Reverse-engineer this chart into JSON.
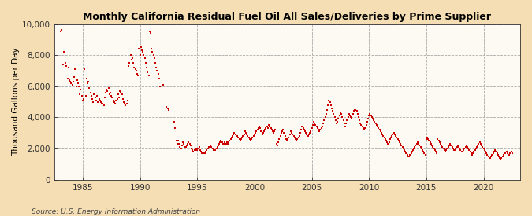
{
  "title": "Monthly California Residual Fuel Oil All Sales/Deliveries by Prime Supplier",
  "ylabel": "Thousand Gallons per Day",
  "source": "Source: U.S. Energy Information Administration",
  "bg_outer": "#F5DEB3",
  "bg_plot": "#FDFAF3",
  "marker_color": "#CC0000",
  "ylim": [
    0,
    10000
  ],
  "yticks": [
    0,
    2000,
    4000,
    6000,
    8000,
    10000
  ],
  "xlim_start": 1982.5,
  "xlim_end": 2023.2,
  "xticks": [
    1985,
    1990,
    1995,
    2000,
    2005,
    2010,
    2015,
    2020
  ],
  "data": [
    [
      1983.08,
      9500
    ],
    [
      1983.17,
      9600
    ],
    [
      1983.25,
      7400
    ],
    [
      1983.33,
      8200
    ],
    [
      1983.5,
      7500
    ],
    [
      1983.58,
      7300
    ],
    [
      1983.67,
      6500
    ],
    [
      1983.75,
      7200
    ],
    [
      1983.83,
      6400
    ],
    [
      1983.92,
      6300
    ],
    [
      1984.0,
      6200
    ],
    [
      1984.08,
      6100
    ],
    [
      1984.17,
      6300
    ],
    [
      1984.25,
      6600
    ],
    [
      1984.33,
      7100
    ],
    [
      1984.42,
      6000
    ],
    [
      1984.5,
      6400
    ],
    [
      1984.58,
      6200
    ],
    [
      1984.67,
      6000
    ],
    [
      1984.75,
      5500
    ],
    [
      1984.83,
      5800
    ],
    [
      1984.92,
      5400
    ],
    [
      1985.0,
      5100
    ],
    [
      1985.08,
      5200
    ],
    [
      1985.17,
      7100
    ],
    [
      1985.25,
      5400
    ],
    [
      1985.33,
      6500
    ],
    [
      1985.42,
      6200
    ],
    [
      1985.5,
      6300
    ],
    [
      1985.58,
      5900
    ],
    [
      1985.67,
      5600
    ],
    [
      1985.75,
      5400
    ],
    [
      1985.83,
      5200
    ],
    [
      1985.92,
      5000
    ],
    [
      1986.0,
      5500
    ],
    [
      1986.08,
      5300
    ],
    [
      1986.17,
      5100
    ],
    [
      1986.25,
      5400
    ],
    [
      1986.33,
      5000
    ],
    [
      1986.42,
      5200
    ],
    [
      1986.5,
      5100
    ],
    [
      1986.58,
      5000
    ],
    [
      1986.67,
      4900
    ],
    [
      1986.75,
      4900
    ],
    [
      1986.83,
      4800
    ],
    [
      1986.92,
      5300
    ],
    [
      1987.0,
      5600
    ],
    [
      1987.08,
      5800
    ],
    [
      1987.17,
      5700
    ],
    [
      1987.25,
      5900
    ],
    [
      1987.33,
      5500
    ],
    [
      1987.42,
      5600
    ],
    [
      1987.5,
      5400
    ],
    [
      1987.58,
      5300
    ],
    [
      1987.67,
      5100
    ],
    [
      1987.75,
      5000
    ],
    [
      1987.83,
      4900
    ],
    [
      1987.92,
      5100
    ],
    [
      1988.0,
      5200
    ],
    [
      1988.08,
      5500
    ],
    [
      1988.17,
      5300
    ],
    [
      1988.25,
      5700
    ],
    [
      1988.33,
      5600
    ],
    [
      1988.42,
      5500
    ],
    [
      1988.5,
      5200
    ],
    [
      1988.58,
      5000
    ],
    [
      1988.67,
      4900
    ],
    [
      1988.75,
      4800
    ],
    [
      1988.83,
      4900
    ],
    [
      1988.92,
      5100
    ],
    [
      1989.0,
      7300
    ],
    [
      1989.08,
      7500
    ],
    [
      1989.17,
      8000
    ],
    [
      1989.25,
      7700
    ],
    [
      1989.33,
      7800
    ],
    [
      1989.42,
      7500
    ],
    [
      1989.5,
      7200
    ],
    [
      1989.58,
      7100
    ],
    [
      1989.67,
      7000
    ],
    [
      1989.75,
      6800
    ],
    [
      1989.83,
      6700
    ],
    [
      1989.92,
      8400
    ],
    [
      1990.0,
      8000
    ],
    [
      1990.08,
      8500
    ],
    [
      1990.17,
      8300
    ],
    [
      1990.25,
      8200
    ],
    [
      1990.33,
      8000
    ],
    [
      1990.42,
      7800
    ],
    [
      1990.5,
      7500
    ],
    [
      1990.58,
      7200
    ],
    [
      1990.67,
      6900
    ],
    [
      1990.75,
      6700
    ],
    [
      1990.83,
      9500
    ],
    [
      1990.92,
      9400
    ],
    [
      1991.0,
      8400
    ],
    [
      1991.08,
      8200
    ],
    [
      1991.17,
      8000
    ],
    [
      1991.25,
      7800
    ],
    [
      1991.33,
      7500
    ],
    [
      1991.42,
      7200
    ],
    [
      1991.5,
      7000
    ],
    [
      1991.58,
      6800
    ],
    [
      1991.67,
      6500
    ],
    [
      1991.75,
      6000
    ],
    [
      1992.0,
      6100
    ],
    [
      1992.33,
      4700
    ],
    [
      1992.42,
      4600
    ],
    [
      1992.5,
      4500
    ],
    [
      1993.0,
      3700
    ],
    [
      1993.08,
      3300
    ],
    [
      1993.17,
      2500
    ],
    [
      1993.25,
      2300
    ],
    [
      1993.33,
      2500
    ],
    [
      1993.42,
      2300
    ],
    [
      1993.5,
      2100
    ],
    [
      1993.58,
      2000
    ],
    [
      1993.67,
      2200
    ],
    [
      1993.75,
      2400
    ],
    [
      1993.83,
      2300
    ],
    [
      1993.92,
      2100
    ],
    [
      1994.0,
      2100
    ],
    [
      1994.08,
      2200
    ],
    [
      1994.17,
      2300
    ],
    [
      1994.25,
      2400
    ],
    [
      1994.33,
      2300
    ],
    [
      1994.42,
      2200
    ],
    [
      1994.5,
      2000
    ],
    [
      1994.58,
      1900
    ],
    [
      1994.67,
      1800
    ],
    [
      1994.75,
      1900
    ],
    [
      1994.83,
      1900
    ],
    [
      1994.92,
      2000
    ],
    [
      1995.0,
      1900
    ],
    [
      1995.08,
      2000
    ],
    [
      1995.17,
      2100
    ],
    [
      1995.25,
      1900
    ],
    [
      1995.33,
      1800
    ],
    [
      1995.42,
      1700
    ],
    [
      1995.5,
      1700
    ],
    [
      1995.58,
      1700
    ],
    [
      1995.67,
      1700
    ],
    [
      1995.75,
      1800
    ],
    [
      1995.83,
      1900
    ],
    [
      1995.92,
      2000
    ],
    [
      1996.0,
      2100
    ],
    [
      1996.08,
      2100
    ],
    [
      1996.17,
      2200
    ],
    [
      1996.25,
      2100
    ],
    [
      1996.33,
      2000
    ],
    [
      1996.42,
      1900
    ],
    [
      1996.5,
      1900
    ],
    [
      1996.58,
      1900
    ],
    [
      1996.67,
      2000
    ],
    [
      1996.75,
      2100
    ],
    [
      1996.83,
      2200
    ],
    [
      1996.92,
      2300
    ],
    [
      1997.0,
      2400
    ],
    [
      1997.08,
      2500
    ],
    [
      1997.17,
      2400
    ],
    [
      1997.25,
      2300
    ],
    [
      1997.33,
      2300
    ],
    [
      1997.42,
      2400
    ],
    [
      1997.5,
      2300
    ],
    [
      1997.58,
      2400
    ],
    [
      1997.67,
      2300
    ],
    [
      1997.75,
      2400
    ],
    [
      1997.83,
      2500
    ],
    [
      1997.92,
      2600
    ],
    [
      1998.0,
      2700
    ],
    [
      1998.08,
      2800
    ],
    [
      1998.17,
      2900
    ],
    [
      1998.25,
      3000
    ],
    [
      1998.33,
      2900
    ],
    [
      1998.42,
      2800
    ],
    [
      1998.5,
      2800
    ],
    [
      1998.58,
      2700
    ],
    [
      1998.67,
      2600
    ],
    [
      1998.75,
      2500
    ],
    [
      1998.83,
      2600
    ],
    [
      1998.92,
      2700
    ],
    [
      1999.0,
      2800
    ],
    [
      1999.08,
      2900
    ],
    [
      1999.17,
      3100
    ],
    [
      1999.25,
      3000
    ],
    [
      1999.33,
      2900
    ],
    [
      1999.42,
      2800
    ],
    [
      1999.5,
      2700
    ],
    [
      1999.58,
      2600
    ],
    [
      1999.67,
      2500
    ],
    [
      1999.75,
      2600
    ],
    [
      1999.83,
      2700
    ],
    [
      1999.92,
      2800
    ],
    [
      2000.0,
      2900
    ],
    [
      2000.08,
      3000
    ],
    [
      2000.17,
      3100
    ],
    [
      2000.25,
      3200
    ],
    [
      2000.33,
      3300
    ],
    [
      2000.42,
      3400
    ],
    [
      2000.5,
      3300
    ],
    [
      2000.58,
      3100
    ],
    [
      2000.67,
      2900
    ],
    [
      2000.75,
      3000
    ],
    [
      2000.83,
      3100
    ],
    [
      2000.92,
      3200
    ],
    [
      2001.0,
      3300
    ],
    [
      2001.08,
      3400
    ],
    [
      2001.17,
      3300
    ],
    [
      2001.25,
      3500
    ],
    [
      2001.33,
      3400
    ],
    [
      2001.42,
      3300
    ],
    [
      2001.5,
      3200
    ],
    [
      2001.58,
      3100
    ],
    [
      2001.67,
      3000
    ],
    [
      2001.75,
      3100
    ],
    [
      2001.83,
      3200
    ],
    [
      2001.92,
      2300
    ],
    [
      2002.0,
      2200
    ],
    [
      2002.08,
      2400
    ],
    [
      2002.17,
      2600
    ],
    [
      2002.25,
      2800
    ],
    [
      2002.33,
      3000
    ],
    [
      2002.42,
      3100
    ],
    [
      2002.5,
      3200
    ],
    [
      2002.58,
      3000
    ],
    [
      2002.67,
      2800
    ],
    [
      2002.75,
      2600
    ],
    [
      2002.83,
      2500
    ],
    [
      2002.92,
      2600
    ],
    [
      2003.0,
      2700
    ],
    [
      2003.08,
      2900
    ],
    [
      2003.17,
      3100
    ],
    [
      2003.25,
      3000
    ],
    [
      2003.33,
      2900
    ],
    [
      2003.42,
      2800
    ],
    [
      2003.5,
      2700
    ],
    [
      2003.58,
      2600
    ],
    [
      2003.67,
      2500
    ],
    [
      2003.75,
      2600
    ],
    [
      2003.83,
      2700
    ],
    [
      2003.92,
      2800
    ],
    [
      2004.0,
      3000
    ],
    [
      2004.08,
      3200
    ],
    [
      2004.17,
      3400
    ],
    [
      2004.25,
      3300
    ],
    [
      2004.33,
      3200
    ],
    [
      2004.42,
      3100
    ],
    [
      2004.5,
      3000
    ],
    [
      2004.58,
      2900
    ],
    [
      2004.67,
      2800
    ],
    [
      2004.75,
      2900
    ],
    [
      2004.83,
      3000
    ],
    [
      2004.92,
      3100
    ],
    [
      2005.0,
      3300
    ],
    [
      2005.08,
      3500
    ],
    [
      2005.17,
      3700
    ],
    [
      2005.25,
      3600
    ],
    [
      2005.33,
      3500
    ],
    [
      2005.42,
      3400
    ],
    [
      2005.5,
      3300
    ],
    [
      2005.58,
      3200
    ],
    [
      2005.67,
      3100
    ],
    [
      2005.75,
      3200
    ],
    [
      2005.83,
      3300
    ],
    [
      2005.92,
      3400
    ],
    [
      2006.0,
      3600
    ],
    [
      2006.08,
      3800
    ],
    [
      2006.17,
      4000
    ],
    [
      2006.25,
      4200
    ],
    [
      2006.33,
      4500
    ],
    [
      2006.42,
      4800
    ],
    [
      2006.5,
      5100
    ],
    [
      2006.58,
      5000
    ],
    [
      2006.67,
      4800
    ],
    [
      2006.75,
      4600
    ],
    [
      2006.83,
      4400
    ],
    [
      2006.92,
      4200
    ],
    [
      2007.0,
      4000
    ],
    [
      2007.08,
      3800
    ],
    [
      2007.17,
      3600
    ],
    [
      2007.25,
      3700
    ],
    [
      2007.33,
      3900
    ],
    [
      2007.42,
      4100
    ],
    [
      2007.5,
      4300
    ],
    [
      2007.58,
      4200
    ],
    [
      2007.67,
      4000
    ],
    [
      2007.75,
      3800
    ],
    [
      2007.83,
      3600
    ],
    [
      2007.92,
      3400
    ],
    [
      2008.0,
      3600
    ],
    [
      2008.08,
      3800
    ],
    [
      2008.17,
      4000
    ],
    [
      2008.25,
      4200
    ],
    [
      2008.33,
      4100
    ],
    [
      2008.42,
      4000
    ],
    [
      2008.5,
      3900
    ],
    [
      2008.58,
      4200
    ],
    [
      2008.67,
      4400
    ],
    [
      2008.75,
      4500
    ],
    [
      2008.83,
      4450
    ],
    [
      2008.92,
      4400
    ],
    [
      2009.0,
      4200
    ],
    [
      2009.08,
      4000
    ],
    [
      2009.17,
      3800
    ],
    [
      2009.25,
      3600
    ],
    [
      2009.33,
      3500
    ],
    [
      2009.42,
      3400
    ],
    [
      2009.5,
      3300
    ],
    [
      2009.58,
      3200
    ],
    [
      2009.67,
      3300
    ],
    [
      2009.75,
      3500
    ],
    [
      2009.83,
      3700
    ],
    [
      2009.92,
      3900
    ],
    [
      2010.0,
      4100
    ],
    [
      2010.08,
      4200
    ],
    [
      2010.17,
      4100
    ],
    [
      2010.25,
      4000
    ],
    [
      2010.33,
      3900
    ],
    [
      2010.42,
      3800
    ],
    [
      2010.5,
      3700
    ],
    [
      2010.58,
      3600
    ],
    [
      2010.67,
      3500
    ],
    [
      2010.75,
      3400
    ],
    [
      2010.83,
      3300
    ],
    [
      2010.92,
      3200
    ],
    [
      2011.0,
      3100
    ],
    [
      2011.08,
      3000
    ],
    [
      2011.17,
      2900
    ],
    [
      2011.25,
      2800
    ],
    [
      2011.33,
      2700
    ],
    [
      2011.42,
      2600
    ],
    [
      2011.5,
      2500
    ],
    [
      2011.58,
      2400
    ],
    [
      2011.67,
      2300
    ],
    [
      2011.75,
      2400
    ],
    [
      2011.83,
      2600
    ],
    [
      2011.92,
      2700
    ],
    [
      2012.0,
      2800
    ],
    [
      2012.08,
      2900
    ],
    [
      2012.17,
      3000
    ],
    [
      2012.25,
      2900
    ],
    [
      2012.33,
      2800
    ],
    [
      2012.42,
      2700
    ],
    [
      2012.5,
      2600
    ],
    [
      2012.58,
      2500
    ],
    [
      2012.67,
      2400
    ],
    [
      2012.75,
      2300
    ],
    [
      2012.83,
      2200
    ],
    [
      2012.92,
      2100
    ],
    [
      2013.0,
      2000
    ],
    [
      2013.08,
      1900
    ],
    [
      2013.17,
      1800
    ],
    [
      2013.25,
      1700
    ],
    [
      2013.33,
      1600
    ],
    [
      2013.42,
      1500
    ],
    [
      2013.5,
      1500
    ],
    [
      2013.58,
      1600
    ],
    [
      2013.67,
      1700
    ],
    [
      2013.75,
      1800
    ],
    [
      2013.83,
      1900
    ],
    [
      2013.92,
      2000
    ],
    [
      2014.0,
      2100
    ],
    [
      2014.08,
      2200
    ],
    [
      2014.17,
      2300
    ],
    [
      2014.25,
      2400
    ],
    [
      2014.33,
      2300
    ],
    [
      2014.42,
      2200
    ],
    [
      2014.5,
      2100
    ],
    [
      2014.58,
      2000
    ],
    [
      2014.67,
      1900
    ],
    [
      2014.75,
      1800
    ],
    [
      2014.83,
      1700
    ],
    [
      2014.92,
      1600
    ],
    [
      2015.0,
      2600
    ],
    [
      2015.08,
      2700
    ],
    [
      2015.17,
      2600
    ],
    [
      2015.25,
      2500
    ],
    [
      2015.33,
      2400
    ],
    [
      2015.42,
      2300
    ],
    [
      2015.5,
      2200
    ],
    [
      2015.58,
      2100
    ],
    [
      2015.67,
      2000
    ],
    [
      2015.75,
      1900
    ],
    [
      2015.83,
      1800
    ],
    [
      2015.92,
      1700
    ],
    [
      2016.0,
      2600
    ],
    [
      2016.08,
      2500
    ],
    [
      2016.17,
      2400
    ],
    [
      2016.25,
      2300
    ],
    [
      2016.33,
      2200
    ],
    [
      2016.42,
      2100
    ],
    [
      2016.5,
      2000
    ],
    [
      2016.58,
      1900
    ],
    [
      2016.67,
      1800
    ],
    [
      2016.75,
      1900
    ],
    [
      2016.83,
      2000
    ],
    [
      2016.92,
      2100
    ],
    [
      2017.0,
      2200
    ],
    [
      2017.08,
      2300
    ],
    [
      2017.17,
      2200
    ],
    [
      2017.25,
      2100
    ],
    [
      2017.33,
      2000
    ],
    [
      2017.42,
      1900
    ],
    [
      2017.5,
      1900
    ],
    [
      2017.58,
      2000
    ],
    [
      2017.67,
      2100
    ],
    [
      2017.75,
      2200
    ],
    [
      2017.83,
      2100
    ],
    [
      2017.92,
      2000
    ],
    [
      2018.0,
      1900
    ],
    [
      2018.08,
      1800
    ],
    [
      2018.17,
      1800
    ],
    [
      2018.25,
      1900
    ],
    [
      2018.33,
      2000
    ],
    [
      2018.42,
      2100
    ],
    [
      2018.5,
      2200
    ],
    [
      2018.58,
      2100
    ],
    [
      2018.67,
      2000
    ],
    [
      2018.75,
      1900
    ],
    [
      2018.83,
      1800
    ],
    [
      2018.92,
      1700
    ],
    [
      2019.0,
      1600
    ],
    [
      2019.08,
      1700
    ],
    [
      2019.17,
      1800
    ],
    [
      2019.25,
      1900
    ],
    [
      2019.33,
      2000
    ],
    [
      2019.42,
      2100
    ],
    [
      2019.5,
      2200
    ],
    [
      2019.58,
      2300
    ],
    [
      2019.67,
      2400
    ],
    [
      2019.75,
      2300
    ],
    [
      2019.83,
      2200
    ],
    [
      2019.92,
      2100
    ],
    [
      2020.0,
      2000
    ],
    [
      2020.08,
      1900
    ],
    [
      2020.17,
      1800
    ],
    [
      2020.25,
      1700
    ],
    [
      2020.33,
      1600
    ],
    [
      2020.42,
      1500
    ],
    [
      2020.5,
      1400
    ],
    [
      2020.58,
      1400
    ],
    [
      2020.67,
      1500
    ],
    [
      2020.75,
      1600
    ],
    [
      2020.83,
      1700
    ],
    [
      2020.92,
      1800
    ],
    [
      2021.0,
      1900
    ],
    [
      2021.08,
      1800
    ],
    [
      2021.17,
      1700
    ],
    [
      2021.25,
      1600
    ],
    [
      2021.33,
      1500
    ],
    [
      2021.42,
      1400
    ],
    [
      2021.5,
      1300
    ],
    [
      2021.58,
      1400
    ],
    [
      2021.67,
      1500
    ],
    [
      2021.75,
      1600
    ],
    [
      2021.83,
      1700
    ],
    [
      2021.92,
      1700
    ],
    [
      2022.0,
      1800
    ],
    [
      2022.08,
      1700
    ],
    [
      2022.17,
      1600
    ],
    [
      2022.25,
      1600
    ],
    [
      2022.33,
      1700
    ],
    [
      2022.42,
      1800
    ],
    [
      2022.5,
      1700
    ]
  ]
}
